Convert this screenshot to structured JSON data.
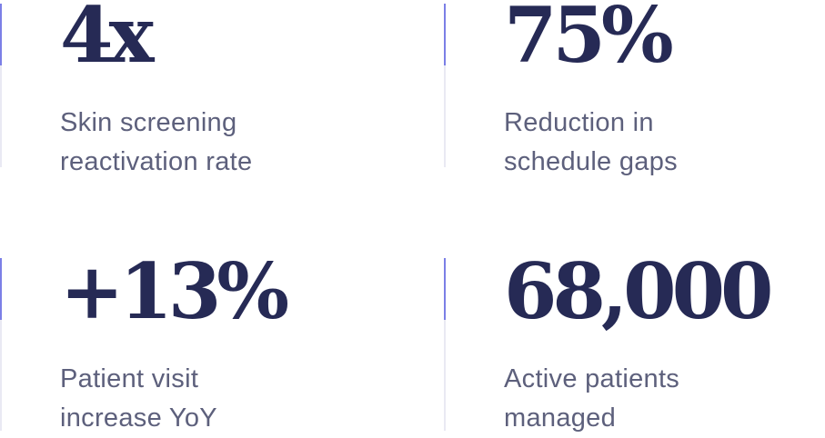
{
  "stats": [
    {
      "value": "4x",
      "label_line1": "Skin screening",
      "label_line2": "reactivation rate"
    },
    {
      "value": "75%",
      "label_line1": "Reduction in",
      "label_line2": "schedule gaps"
    },
    {
      "value": "+13%",
      "label_line1": "Patient visit",
      "label_line2": "increase YoY"
    },
    {
      "value": "68,000",
      "label_line1": "Active patients",
      "label_line2": "managed"
    }
  ],
  "colors": {
    "value_text": "#262a55",
    "label_text": "#5d607c",
    "accent": "#7b7fe6",
    "divider": "#e9e9f3"
  }
}
